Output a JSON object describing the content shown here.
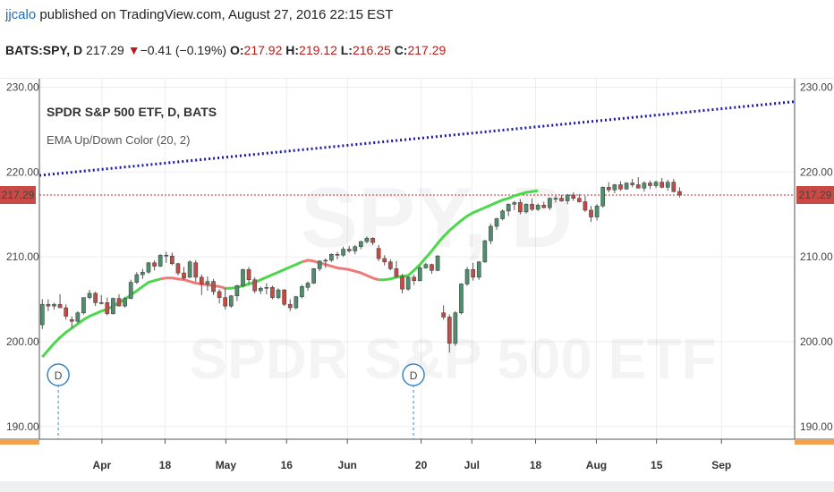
{
  "header": {
    "user": "jjcalo",
    "published": " published on TradingView.com, August 27, 2016 22:15 EST"
  },
  "ticker": {
    "symbol": "BATS:SPY, D",
    "price": "217.29",
    "arrow": "▼",
    "change": "−0.41 (−0.19%)",
    "o_label": "O:",
    "o_value": "217.92",
    "h_label": "H:",
    "h_value": "219.12",
    "l_label": "L:",
    "l_value": "216.25",
    "c_label": "C:",
    "c_value": "217.29"
  },
  "chart_data": {
    "type": "candlestick",
    "title": "SPDR S&P 500 ETF, D, BATS",
    "indicator": "EMA Up/Down Color (20, 2)",
    "watermark_symbol": "SPY, D",
    "watermark_name": "SPDR S&P 500 ETF",
    "ylim": [
      188.5,
      231
    ],
    "yticks": [
      "230.00",
      "220.00",
      "210.00",
      "200.00",
      "190.00"
    ],
    "ytick_values": [
      230,
      220,
      210,
      200,
      190
    ],
    "xlim": [
      0,
      128
    ],
    "xticks": [
      {
        "label": "Apr",
        "x": 10.6
      },
      {
        "label": "18",
        "x": 21.3
      },
      {
        "label": "May",
        "x": 31.6
      },
      {
        "label": "16",
        "x": 41.9
      },
      {
        "label": "Jun",
        "x": 52.2
      },
      {
        "label": "20",
        "x": 64.7
      },
      {
        "label": "Jul",
        "x": 73.3
      },
      {
        "label": "18",
        "x": 84.1
      },
      {
        "label": "Aug",
        "x": 94.4
      },
      {
        "label": "15",
        "x": 104.6
      },
      {
        "label": "Sep",
        "x": 115.6
      }
    ],
    "last_price": 217.29,
    "last_price_label": "217.29",
    "trendline": {
      "x": [
        0,
        128
      ],
      "y": [
        219.6,
        228.3
      ],
      "color": "#1a1aa6"
    },
    "candles": [
      [
        202,
        205,
        201.5,
        204.4
      ],
      [
        204.4,
        205,
        203.6,
        204.2
      ],
      [
        204.2,
        204.6,
        203.8,
        204.4
      ],
      [
        204.4,
        205.6,
        204,
        204
      ],
      [
        204,
        204.4,
        202.6,
        203
      ],
      [
        202.6,
        203,
        201.6,
        202.4
      ],
      [
        202.4,
        203.6,
        202.2,
        203.4
      ],
      [
        203.4,
        205.2,
        203.2,
        205.2
      ],
      [
        205.2,
        206.1,
        205,
        205.7
      ],
      [
        205.7,
        205.9,
        204.2,
        204.6
      ],
      [
        204.6,
        205.5,
        204.4,
        204.6
      ],
      [
        204.6,
        205.2,
        203.1,
        203.3
      ],
      [
        203.3,
        205.2,
        203.2,
        205.1
      ],
      [
        205.1,
        205.6,
        204.2,
        204.2
      ],
      [
        204.2,
        205.3,
        204,
        205.1
      ],
      [
        205.1,
        207.3,
        205,
        207
      ],
      [
        207,
        208.2,
        206.8,
        207.9
      ],
      [
        207.9,
        208.6,
        207.4,
        208.2
      ],
      [
        208.2,
        209.4,
        208,
        209.3
      ],
      [
        209.3,
        209.6,
        208.4,
        208.9
      ],
      [
        208.9,
        210.3,
        208.8,
        210.2
      ],
      [
        210.2,
        210.6,
        209.3,
        210.1
      ],
      [
        210.1,
        210.5,
        209,
        209.2
      ],
      [
        209.2,
        209.3,
        207.8,
        208.1
      ],
      [
        208.1,
        208.8,
        207.3,
        207.5
      ],
      [
        207.6,
        209.6,
        207.5,
        209.4
      ],
      [
        209.3,
        209.6,
        207.1,
        207.6
      ],
      [
        207.6,
        207.9,
        205.5,
        206.8
      ],
      [
        206.8,
        207.7,
        206,
        207.1
      ],
      [
        207.1,
        207.4,
        205.5,
        205.9
      ],
      [
        205.9,
        206.2,
        204.5,
        205.2
      ],
      [
        205.2,
        206.3,
        203.8,
        204.2
      ],
      [
        204.2,
        205.5,
        204,
        205.4
      ],
      [
        205.4,
        206.7,
        204.8,
        206.6
      ],
      [
        206.6,
        208.6,
        206.4,
        208.5
      ],
      [
        208.5,
        208.8,
        206.8,
        207.3
      ],
      [
        207.3,
        207.6,
        205.7,
        206
      ],
      [
        206,
        206.5,
        205.6,
        206.3
      ],
      [
        206.3,
        206.9,
        205.6,
        206.4
      ],
      [
        206.4,
        206.6,
        205,
        205.2
      ],
      [
        205.2,
        206.3,
        205,
        206.1
      ],
      [
        206.1,
        206.2,
        204.2,
        204.4
      ],
      [
        204.4,
        205,
        203.6,
        204
      ],
      [
        204,
        205.4,
        203.8,
        205.3
      ],
      [
        205.3,
        206.7,
        205.1,
        206.5
      ],
      [
        206.4,
        207.1,
        206,
        206.9
      ],
      [
        206.9,
        208.7,
        206.8,
        208.6
      ],
      [
        208.6,
        209.6,
        208.3,
        209.5
      ],
      [
        209.5,
        209.8,
        208.7,
        209.6
      ],
      [
        209.6,
        210.4,
        209.4,
        210.3
      ],
      [
        210.3,
        210.6,
        209.7,
        210.2
      ],
      [
        210.2,
        211.2,
        210,
        210.9
      ],
      [
        210.9,
        211.3,
        210.5,
        210.7
      ],
      [
        210.7,
        211.4,
        210.3,
        211.2
      ],
      [
        211.2,
        211.9,
        210.9,
        211.8
      ],
      [
        211.8,
        212.4,
        211.6,
        212.2
      ],
      [
        212.2,
        212.3,
        211.4,
        211.7
      ],
      [
        211,
        211.4,
        209.5,
        209.8
      ],
      [
        209.8,
        210.2,
        209,
        209.4
      ],
      [
        209.4,
        209.7,
        208.4,
        208.6
      ],
      [
        208.6,
        209.5,
        207.5,
        207.7
      ],
      [
        207.7,
        208,
        205.7,
        206.2
      ],
      [
        206.2,
        207.7,
        206,
        207.6
      ],
      [
        207.6,
        207.9,
        206.7,
        207.2
      ],
      [
        207.2,
        208.9,
        207.1,
        208.7
      ],
      [
        208.7,
        209.3,
        208.6,
        209.1
      ],
      [
        209.1,
        209.2,
        208,
        208.4
      ],
      [
        208.4,
        210.2,
        208.3,
        210.1
      ],
      [
        203.4,
        204.3,
        202.6,
        202.9
      ],
      [
        202.9,
        203.2,
        198.7,
        199.8
      ],
      [
        199.8,
        203.6,
        199.5,
        203.4
      ],
      [
        203.4,
        206.9,
        203.2,
        206.8
      ],
      [
        206.8,
        208.8,
        206.6,
        208.5
      ],
      [
        208.5,
        209.3,
        207.2,
        207.6
      ],
      [
        207.6,
        209.5,
        207.3,
        209.4
      ],
      [
        209.4,
        212,
        209.3,
        211.9
      ],
      [
        211.9,
        213.9,
        211.5,
        213.6
      ],
      [
        213.6,
        214.6,
        213.2,
        214.5
      ],
      [
        214.5,
        215.6,
        214.3,
        215.4
      ],
      [
        215.4,
        216.3,
        214.8,
        216.2
      ],
      [
        216.2,
        216.6,
        215.5,
        216.4
      ],
      [
        216.4,
        216.8,
        215,
        215.3
      ],
      [
        215.3,
        216.3,
        215.1,
        216.2
      ],
      [
        216.2,
        216.9,
        215.4,
        215.6
      ],
      [
        215.6,
        216.3,
        215.4,
        216.1
      ],
      [
        216.1,
        216.5,
        215.7,
        215.8
      ],
      [
        215.8,
        217,
        215.5,
        216.9
      ],
      [
        216.9,
        217.2,
        216.4,
        216.9
      ],
      [
        216.9,
        217.3,
        216.5,
        216.6
      ],
      [
        216.6,
        217.4,
        216.2,
        217.3
      ],
      [
        217.3,
        217.6,
        216.6,
        216.9
      ],
      [
        216.9,
        217.4,
        216.4,
        216.5
      ],
      [
        216.5,
        217.2,
        215.3,
        215.5
      ],
      [
        215.5,
        216,
        214.1,
        214.7
      ],
      [
        214.7,
        216.2,
        214.3,
        216
      ],
      [
        216,
        218.3,
        215.8,
        218.2
      ],
      [
        218.2,
        218.8,
        217.6,
        217.9
      ],
      [
        217.9,
        218.6,
        217.5,
        218.5
      ],
      [
        218.5,
        218.9,
        217.8,
        218
      ],
      [
        218,
        218.8,
        217.9,
        218.7
      ],
      [
        218.7,
        219.2,
        218.2,
        218.5
      ],
      [
        218.5,
        219.4,
        218.1,
        218.1
      ],
      [
        218.1,
        218.9,
        217.7,
        218.7
      ],
      [
        218.7,
        219,
        218,
        218.4
      ],
      [
        218.4,
        219,
        218.1,
        218.8
      ],
      [
        218.8,
        219.3,
        218.1,
        218.2
      ],
      [
        218.2,
        219.1,
        217.8,
        218.8
      ],
      [
        218.8,
        219.2,
        217.6,
        217.7
      ],
      [
        217.7,
        218.2,
        217,
        217.29
      ]
    ],
    "ema": [
      198.2,
      199,
      199.8,
      200.5,
      201.1,
      201.6,
      202.1,
      202.6,
      203,
      203.3,
      203.6,
      203.8,
      204.2,
      204.6,
      205,
      205.5,
      206,
      206.5,
      207,
      207.2,
      207.4,
      207.5,
      207.5,
      207.4,
      207.3,
      207.1,
      206.9,
      206.8,
      206.7,
      206.6,
      206.5,
      206.3,
      206.3,
      206.4,
      206.6,
      206.8,
      207,
      207.3,
      207.6,
      207.9,
      208.2,
      208.5,
      208.8,
      209.1,
      209.4,
      209.6,
      209.5,
      209.3,
      209.1,
      208.9,
      208.7,
      208.6,
      208.5,
      208.3,
      208.1,
      207.8,
      207.5,
      207.3,
      207.3,
      207.4,
      207.6,
      207.7,
      207.8,
      208.4,
      209.1,
      209.9,
      210.7,
      211.6,
      212.4,
      213.1,
      213.7,
      214.3,
      214.8,
      215.2,
      215.5,
      215.8,
      216.1,
      216.4,
      216.7,
      216.9,
      217.2,
      217.4,
      217.6,
      217.7,
      217.8
    ],
    "ema_segments": [
      {
        "from": 0,
        "to": 20,
        "color": "#4cd84c"
      },
      {
        "from": 20,
        "to": 31,
        "color": "#f07a7a"
      },
      {
        "from": 31,
        "to": 44,
        "color": "#4cd84c"
      },
      {
        "from": 44,
        "to": 57,
        "color": "#f07a7a"
      },
      {
        "from": 57,
        "to": 84,
        "color": "#4cd84c"
      }
    ],
    "dividend_markers": [
      {
        "label": "D",
        "x": 3.2
      },
      {
        "label": "D",
        "x": 63.4
      }
    ]
  },
  "colors": {
    "up_fill": "#4f8f6d",
    "down_fill": "#c94a44",
    "wick": "#555555",
    "price_line": "#c62828",
    "price_tag": "#c94a44",
    "trend": "#1a1aa6",
    "user_link": "#1f6bb5",
    "axis_accent": "#f3a14d",
    "marker": "#3d86c6"
  }
}
